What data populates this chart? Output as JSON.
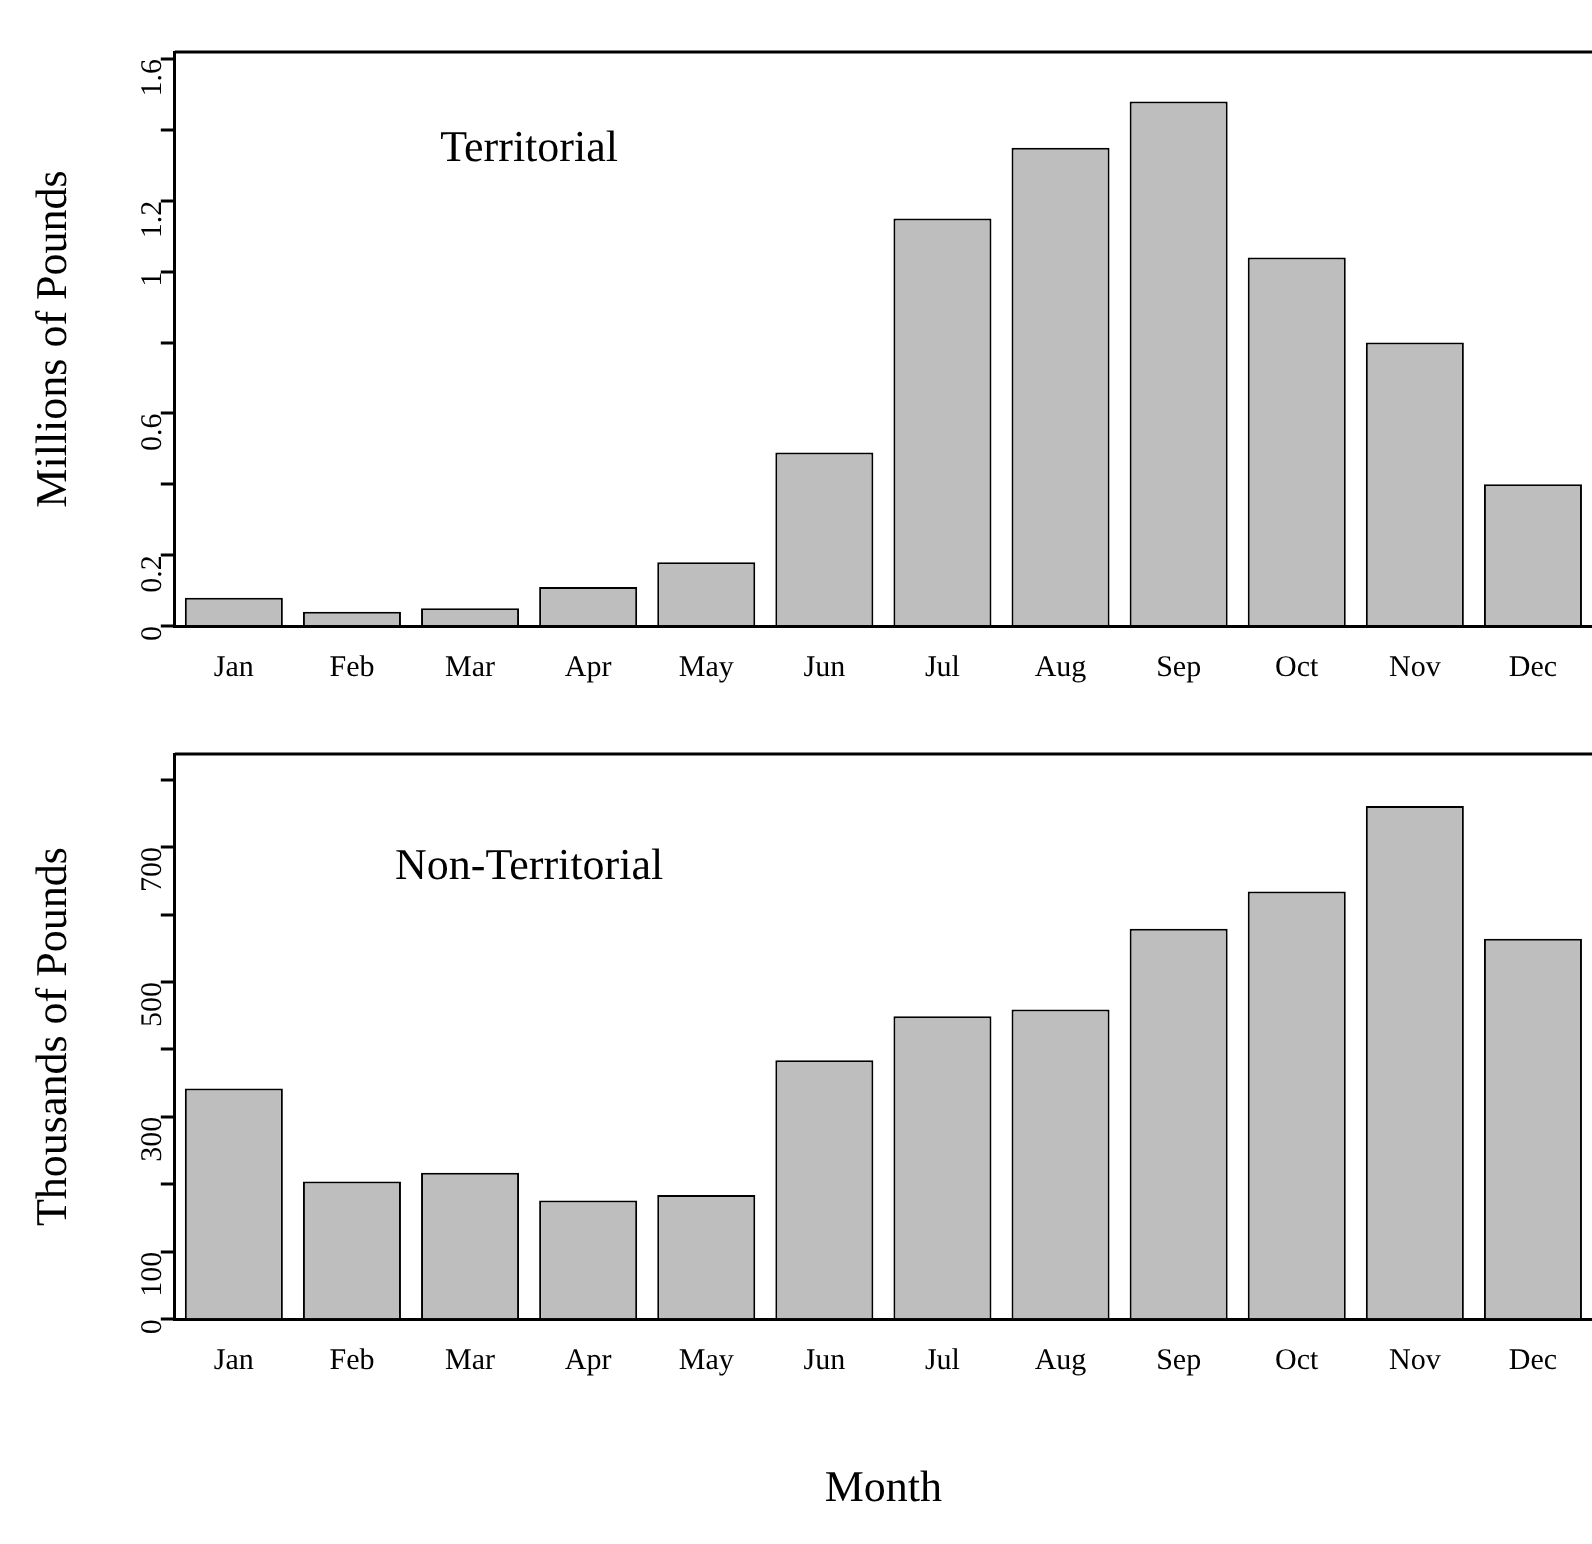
{
  "chart_data": [
    {
      "type": "bar",
      "categories": [
        "Jan",
        "Feb",
        "Mar",
        "Apr",
        "May",
        "Jun",
        "Jul",
        "Aug",
        "Sep",
        "Oct",
        "Nov",
        "Dec"
      ],
      "values": [
        0.08,
        0.04,
        0.05,
        0.11,
        0.18,
        0.49,
        1.15,
        1.35,
        1.48,
        1.04,
        0.8,
        0.4
      ],
      "color": "#bebebe",
      "ylabel": "Millions of Pounds",
      "annotations": [
        "Territorial"
      ],
      "ylim": [
        0,
        1.62
      ],
      "yticks": [
        0,
        0.2,
        {
          "value": 0.4,
          "label": null
        },
        0.6,
        {
          "value": 0.8,
          "label": null
        },
        1,
        1.2,
        {
          "value": 1.4,
          "label": null
        },
        1.6
      ],
      "grid": false,
      "legend": false
    },
    {
      "type": "bar",
      "categories": [
        "Jan",
        "Feb",
        "Mar",
        "Apr",
        "May",
        "Jun",
        "Jul",
        "Aug",
        "Sep",
        "Oct",
        "Nov",
        "Dec"
      ],
      "values": [
        342,
        204,
        217,
        176,
        184,
        384,
        449,
        459,
        579,
        634,
        761,
        564
      ],
      "color": "#bebebe",
      "xlabel": "Month",
      "ylabel": "Thousands of Pounds",
      "annotations": [
        "Non-Territorial"
      ],
      "ylim": [
        0,
        838
      ],
      "yticks": [
        0,
        100,
        {
          "value": 200,
          "label": null
        },
        300,
        {
          "value": 400,
          "label": null
        },
        500,
        {
          "value": 600,
          "label": null
        },
        700,
        {
          "value": 800,
          "label": null
        }
      ],
      "grid": false,
      "legend": false
    }
  ]
}
